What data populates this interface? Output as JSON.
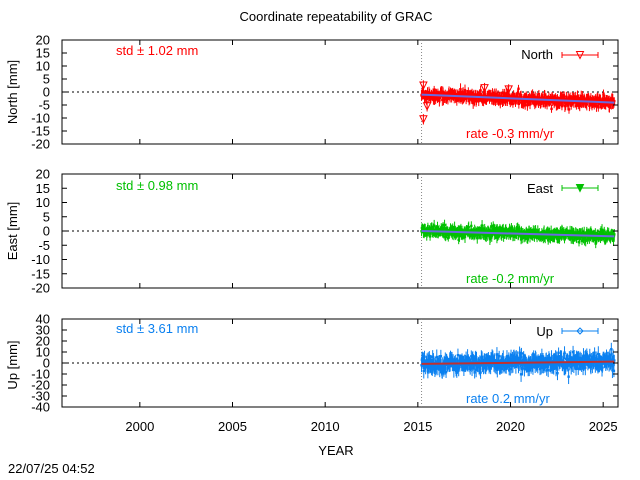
{
  "title": "Coordinate repeatability of GRAC",
  "timestamp": "22/07/25 04:52",
  "chart_data": {
    "type": "scatter",
    "title": "Coordinate repeatability of GRAC",
    "xlabel": "YEAR",
    "xlim": [
      1995.8,
      2025.8
    ],
    "x_ticks": [
      2000,
      2005,
      2010,
      2015,
      2020,
      2025
    ],
    "reference_epoch": 2015.2,
    "panels": [
      {
        "name": "North",
        "ylabel": "North [mm]",
        "ylim": [
          -20,
          20
        ],
        "y_ticks": [
          -20,
          -15,
          -10,
          -5,
          0,
          5,
          10,
          15,
          20
        ],
        "color": "#ff0000",
        "trend_color": "#6a6adf",
        "marker": "triangle-down-open",
        "std_label": "std ± 1.02 mm",
        "rate_label": "rate -0.3 mm/yr",
        "legend": "North",
        "x_start": 2015.2,
        "x_end": 2025.6,
        "trend": {
          "start": -1.0,
          "end": -4.1
        },
        "scatter_sd": 1.0,
        "errorbar": 1.8,
        "outliers": [
          [
            2015.3,
            -10.5
          ],
          [
            2015.5,
            -5.5
          ],
          [
            2015.3,
            2.5
          ],
          [
            2018.6,
            1.5
          ],
          [
            2019.9,
            1.0
          ]
        ]
      },
      {
        "name": "East",
        "ylabel": "East [mm]",
        "ylim": [
          -20,
          20
        ],
        "y_ticks": [
          -20,
          -15,
          -10,
          -5,
          0,
          5,
          10,
          15,
          20
        ],
        "color": "#00c000",
        "trend_color": "#6a6adf",
        "marker": "triangle-down-filled",
        "std_label": "std ± 0.98 mm",
        "rate_label": "rate -0.2 mm/yr",
        "legend": "East",
        "x_start": 2015.2,
        "x_end": 2025.6,
        "trend": {
          "start": 0.0,
          "end": -1.9
        },
        "scatter_sd": 0.95,
        "errorbar": 1.6,
        "outliers": []
      },
      {
        "name": "Up",
        "ylabel": "Up [mm]",
        "ylim": [
          -40,
          40
        ],
        "y_ticks": [
          -40,
          -30,
          -20,
          -10,
          0,
          10,
          20,
          30,
          40
        ],
        "color": "#0a80f0",
        "trend_color": "#c03030",
        "marker": "diamond-open",
        "std_label": "std ± 3.61 mm",
        "rate_label": "rate  0.2 mm/yr",
        "legend": "Up",
        "x_start": 2015.2,
        "x_end": 2025.6,
        "trend": {
          "start": -0.8,
          "end": 1.2
        },
        "scatter_sd": 3.5,
        "errorbar": 5.5,
        "outliers": []
      }
    ]
  }
}
